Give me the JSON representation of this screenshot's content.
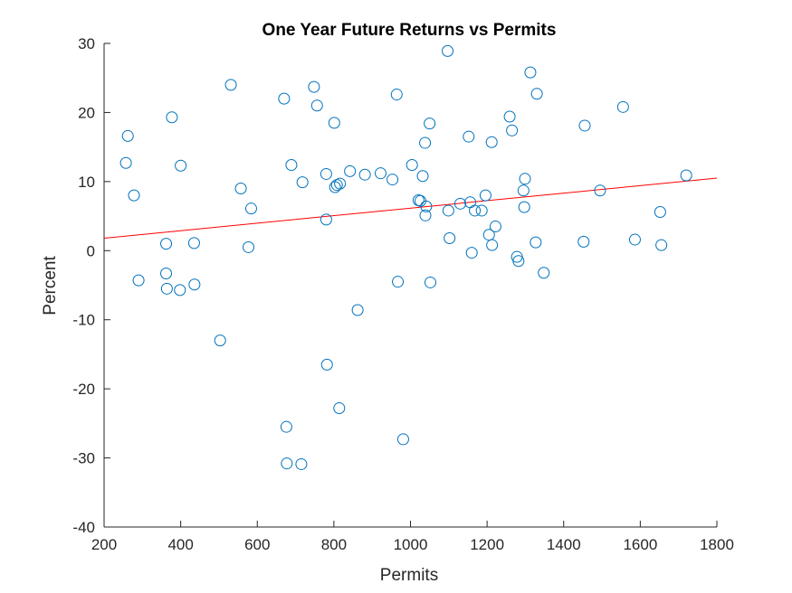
{
  "chart_data": {
    "type": "scatter",
    "title": "One Year Future Returns vs Permits",
    "xlabel": "Permits",
    "ylabel": "Percent",
    "xlim": [
      200,
      1800
    ],
    "ylim": [
      -40,
      30
    ],
    "xticks": [
      200,
      400,
      600,
      800,
      1000,
      1200,
      1400,
      1600,
      1800
    ],
    "xtick_labels": [
      "200",
      "400",
      "600",
      "800",
      "1000",
      "1200",
      "1400",
      "1600",
      "1800"
    ],
    "yticks": [
      -40,
      -30,
      -20,
      -10,
      0,
      10,
      20,
      30
    ],
    "ytick_labels": [
      "-40",
      "-30",
      "-20",
      "-10",
      "0",
      "10",
      "20",
      "30"
    ],
    "grid": false,
    "marker_color": "#0072bd",
    "fit_color": "#ff0000",
    "points": {
      "x": [
        257,
        262,
        278,
        290,
        362,
        362,
        364,
        377,
        398,
        400,
        435,
        436,
        503,
        531,
        557,
        577,
        584,
        670,
        676,
        677,
        689,
        715,
        718,
        748,
        756,
        780,
        780,
        782,
        801,
        803,
        808,
        816,
        814,
        842,
        862,
        881,
        922,
        953,
        964,
        967,
        981,
        1004,
        1021,
        1026,
        1032,
        1038,
        1039,
        1041,
        1050,
        1052,
        1097,
        1099,
        1102,
        1130,
        1152,
        1156,
        1160,
        1168,
        1186,
        1196,
        1205,
        1212,
        1213,
        1222,
        1259,
        1265,
        1278,
        1282,
        1295,
        1297,
        1299,
        1313,
        1327,
        1330,
        1348,
        1452,
        1455,
        1495,
        1555,
        1586,
        1652,
        1655,
        1720
      ],
      "y": [
        12.7,
        16.6,
        8.0,
        -4.3,
        1.0,
        -3.3,
        -5.5,
        19.3,
        -5.7,
        12.3,
        1.1,
        -4.9,
        -13.0,
        24.0,
        9.0,
        0.5,
        6.1,
        22.0,
        -25.5,
        -30.8,
        12.4,
        -30.9,
        9.9,
        23.7,
        21.0,
        11.1,
        4.5,
        -16.5,
        18.5,
        9.2,
        9.5,
        9.7,
        -22.8,
        11.5,
        -8.6,
        11.0,
        11.2,
        10.3,
        22.6,
        -4.5,
        -27.3,
        12.4,
        7.3,
        7.2,
        10.8,
        15.6,
        5.1,
        6.4,
        18.4,
        -4.6,
        28.9,
        5.8,
        1.8,
        6.8,
        16.5,
        7.0,
        -0.3,
        5.8,
        5.8,
        8.0,
        2.3,
        15.7,
        0.8,
        3.5,
        19.4,
        17.4,
        -0.9,
        -1.5,
        8.7,
        6.3,
        10.4,
        25.8,
        1.2,
        22.7,
        -3.2,
        1.3,
        18.1,
        8.7,
        20.8,
        1.6,
        5.6,
        0.8,
        10.9
      ]
    },
    "fit_line": {
      "x": [
        200,
        1800
      ],
      "y": [
        1.8,
        10.5
      ]
    }
  }
}
